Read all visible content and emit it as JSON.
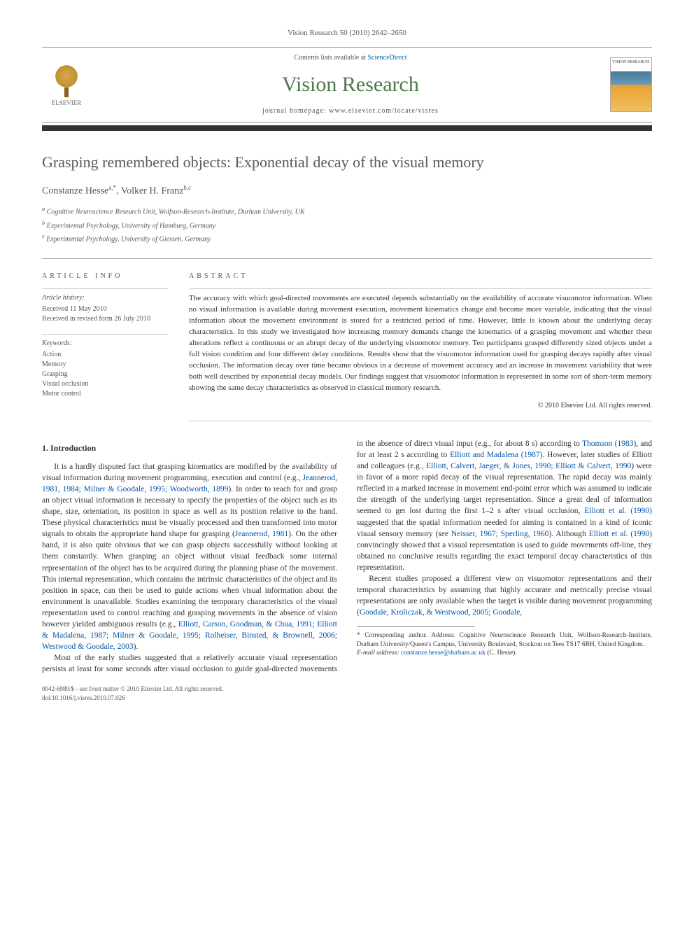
{
  "journal_ref": "Vision Research 50 (2010) 2642–2650",
  "header": {
    "publisher": "ELSEVIER",
    "contents_prefix": "Contents lists available at ",
    "contents_link": "ScienceDirect",
    "journal_title": "Vision Research",
    "homepage_prefix": "journal homepage: ",
    "homepage_url": "www.elsevier.com/locate/visres",
    "cover_label": "VISION RESEARCH"
  },
  "article": {
    "title": "Grasping remembered objects: Exponential decay of the visual memory",
    "authors_html": "Constanze Hesse",
    "author1": "Constanze Hesse",
    "author1_sup": "a,*",
    "author2": "Volker H. Franz",
    "author2_sup": "b,c",
    "affiliations": [
      "Cognitive Neuroscience Research Unit, Wolfson-Research-Institute, Durham University, UK",
      "Experimental Psychology, University of Hamburg, Germany",
      "Experimental Psychology, University of Giessen, Germany"
    ],
    "aff_marks": [
      "a",
      "b",
      "c"
    ]
  },
  "info": {
    "heading": "ARTICLE INFO",
    "history_label": "Article history:",
    "received": "Received 11 May 2010",
    "revised": "Received in revised form 26 July 2010",
    "keywords_label": "Keywords:",
    "keywords": [
      "Action",
      "Memory",
      "Grasping",
      "Visual occlusion",
      "Motor control"
    ]
  },
  "abstract": {
    "heading": "ABSTRACT",
    "body": "The accuracy with which goal-directed movements are executed depends substantially on the availability of accurate visuomotor information. When no visual information is available during movement execution, movement kinematics change and become more variable, indicating that the visual information about the movement environment is stored for a restricted period of time. However, little is known about the underlying decay characteristics. In this study we investigated how increasing memory demands change the kinematics of a grasping movement and whether these alterations reflect a continuous or an abrupt decay of the underlying visuomotor memory. Ten participants grasped differently sized objects under a full vision condition and four different delay conditions. Results show that the visuomotor information used for grasping decays rapidly after visual occlusion. The information decay over time became obvious in a decrease of movement accuracy and an increase in movement variability that were both well described by exponential decay models. Our findings suggest that visuomotor information is represented in some sort of short-term memory showing the same decay characteristics as observed in classical memory research.",
    "copyright": "© 2010 Elsevier Ltd. All rights reserved."
  },
  "body": {
    "section_num": "1.",
    "section_title": "Introduction",
    "para1_a": "It is a hardly disputed fact that grasping kinematics are modified by the availability of visual information during movement programming, execution and control (e.g., ",
    "para1_cite1": "Jeannerod, 1981, 1984; Milner & Goodale, 1995; Woodworth, 1899",
    "para1_b": "). In order to reach for and grasp an object visual information is necessary to specify the properties of the object such as its shape, size, orientation, its position in space as well as its position relative to the hand. These physical characteristics must be visually processed and then transformed into motor signals to obtain the appropriate hand shape for grasping (",
    "para1_cite2": "Jeannerod, 1981",
    "para1_c": "). On the other hand, it is also quite obvious that we can grasp objects successfully without looking at them constantly. When grasping an object without visual feedback some internal representation of the object has to be acquired during the planning phase of the movement. This internal representation, which contains the intrinsic characteristics of the object and its position in space, can then be used to guide actions when visual information about the environment is unavailable. Studies examining the temporary characteristics of the visual representation used to control reaching and grasping movements in the absence of vision however yielded ambiguous results (e.g., ",
    "para1_cite3": "Elliott, Carson, Goodman, & Chua, 1991; Elliott & Madalena, 1987; Milner & Goodale, 1995; Rolheiser, Binsted, & Brownell, 2006; Westwood & Goodale, 2003",
    "para1_d": ").",
    "para2_a": "Most of the early studies suggested that a relatively accurate visual representation persists at least for some seconds after visual occlusion to guide goal-directed movements in the absence of direct visual input (e.g., for about 8 s) according to ",
    "para2_cite1": "Thomson (1983)",
    "para2_b": ", and for at least 2 s according to ",
    "para2_cite2": "Elliott and Madalena (1987)",
    "para2_c": ". However, later studies of Elliott and colleagues (e.g., ",
    "para2_cite3": "Elliott, Calvert, Jaeger, & Jones, 1990; Elliott & Calvert, 1990",
    "para2_d": ") were in favor of a more rapid decay of the visual representation. The rapid decay was mainly reflected in a marked increase in movement end-point error which was assumed to indicate the strength of the underlying target representation. Since a great deal of information seemed to get lost during the first 1–2 s after visual occlusion, ",
    "para2_cite4": "Elliott et al. (1990)",
    "para2_e": " suggested that the spatial information needed for aiming is contained in a kind of iconic visual sensory memory (see ",
    "para2_cite5": "Neisser, 1967; Sperling, 1960",
    "para2_f": "). Although ",
    "para2_cite6": "Elliott et al. (1990)",
    "para2_g": " convincingly showed that a visual representation is used to guide movements off-line, they obtained no conclusive results regarding the exact temporal decay characteristics of this representation.",
    "para3_a": "Recent studies proposed a different view on visuomotor representations and their temporal characteristics by assuming that highly accurate and metrically precise visual representations are only available when the target is visible during movement programming (",
    "para3_cite1": "Goodale, Kroliczak, & Westwood, 2005; Goodale,",
    "footnote_star": "* Corresponding author. Address: Cognitive Neuroscience Research Unit, Wolfson-Research-Institute, Durham University/Queen's Campus, University Boulevard, Stockton on Tees TS17 6BH, United Kingdom.",
    "footnote_email_label": "E-mail address:",
    "footnote_email": "constanze.hesse@durham.ac.uk",
    "footnote_email_suffix": "(C. Hesse)."
  },
  "footer": {
    "left": "0042-6989/$ - see front matter © 2010 Elsevier Ltd. All rights reserved.",
    "doi": "doi:10.1016/j.visres.2010.07.026"
  },
  "colors": {
    "link": "#0055aa",
    "journal_green": "#4a7a4a",
    "rule_dark": "#333333",
    "text": "#333333",
    "muted": "#555555"
  }
}
